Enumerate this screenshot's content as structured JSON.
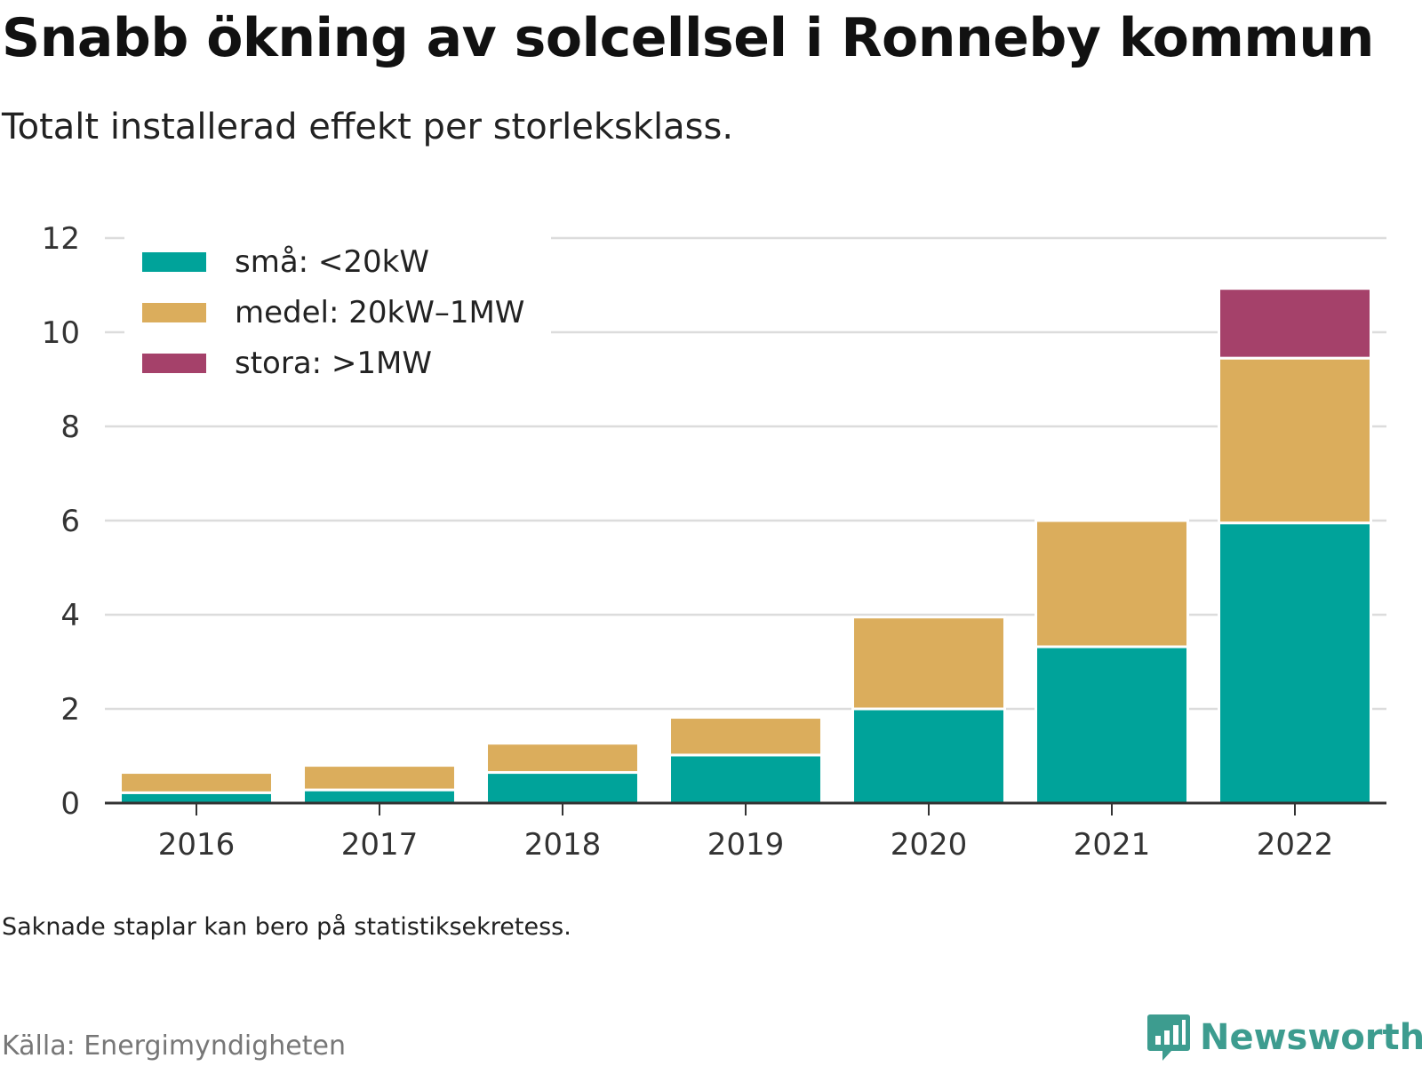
{
  "header": {
    "title": "Snabb ökning av solcellsel i Ronneby kommun",
    "subtitle": "Totalt installerad effekt per storleksklass."
  },
  "footer": {
    "note": "Saknade staplar kan bero på statistiksekretess.",
    "source": "Källa: Energimyndigheten",
    "brand": "Newsworthy",
    "brand_icon": "bar-chart-speech-bubble-icon"
  },
  "chart_data": {
    "type": "bar",
    "stacked": true,
    "categories": [
      "2016",
      "2017",
      "2018",
      "2019",
      "2020",
      "2021",
      "2022"
    ],
    "series": [
      {
        "name": "små: <20kW",
        "color": "#00a39a",
        "values": [
          0.22,
          0.28,
          0.65,
          1.02,
          2.0,
          3.32,
          5.95
        ]
      },
      {
        "name": "medel: 20kW–1MW",
        "color": "#dbad5c",
        "values": [
          0.43,
          0.52,
          0.62,
          0.8,
          1.95,
          2.68,
          3.5
        ]
      },
      {
        "name": "stora: >1MW",
        "color": "#a5416a",
        "values": [
          0,
          0,
          0,
          0,
          0,
          0,
          1.48
        ]
      }
    ],
    "ylim": [
      0,
      12
    ],
    "yticks": [
      0,
      2,
      4,
      6,
      8,
      10,
      12
    ],
    "grid": true,
    "legend_position": "top-left",
    "xlabel": "",
    "ylabel": ""
  }
}
